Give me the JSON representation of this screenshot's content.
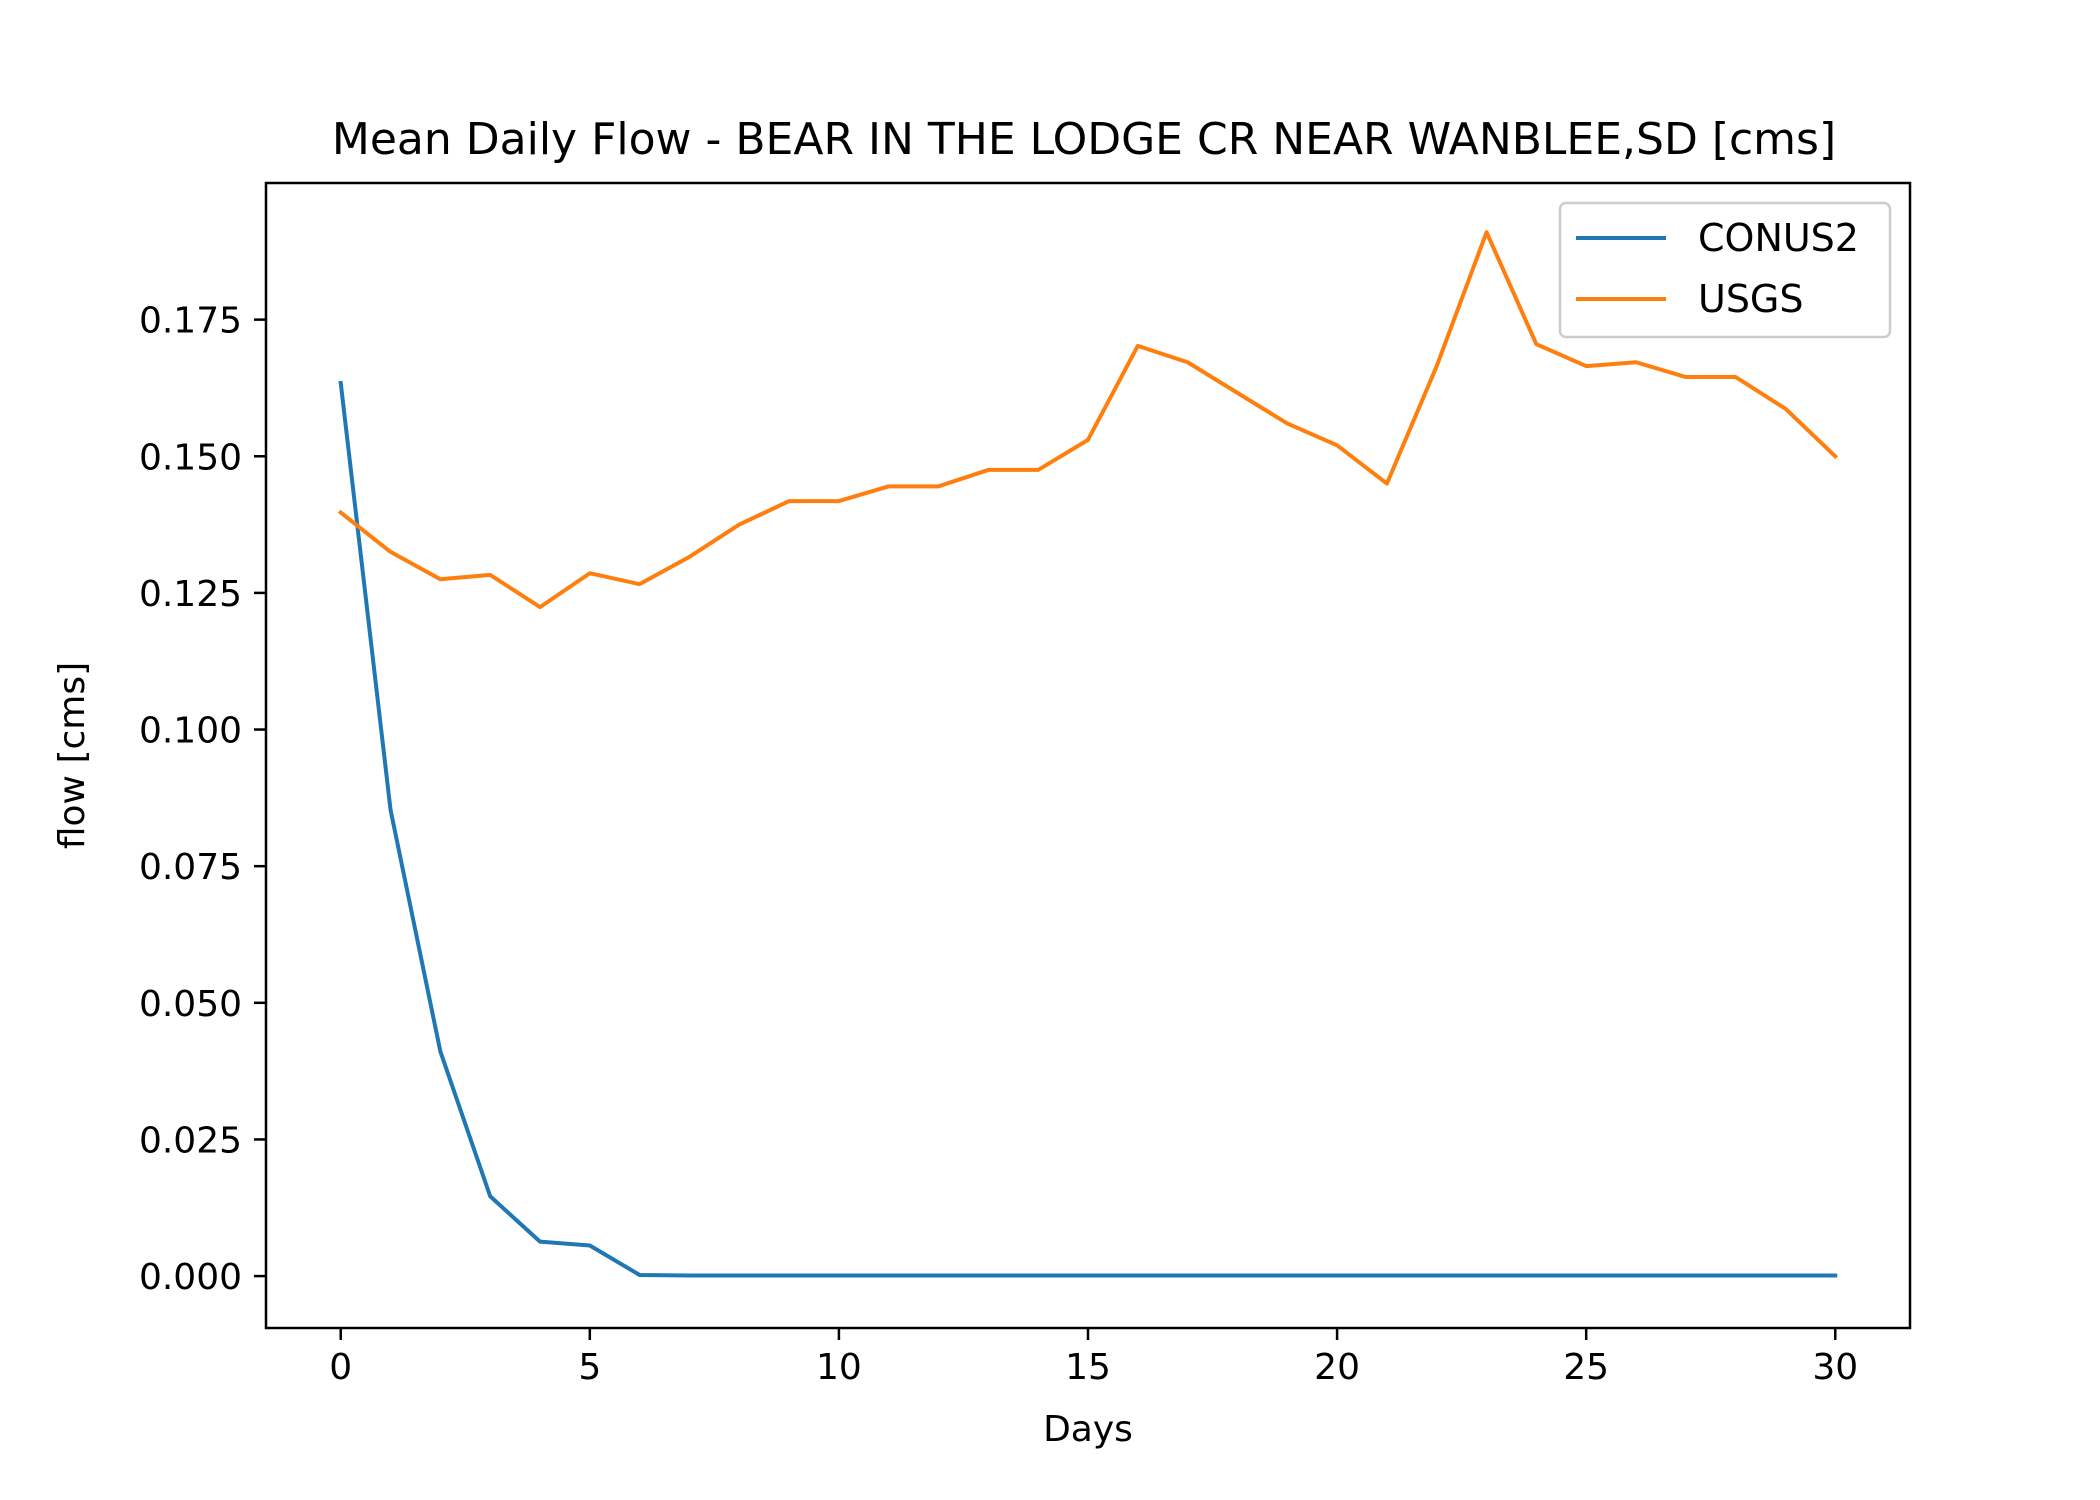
{
  "chart_data": {
    "type": "line",
    "title": "Mean Daily Flow - BEAR IN THE LODGE CR NEAR WANBLEE,SD [cms]",
    "xlabel": "Days",
    "ylabel": "flow [cms]",
    "xlim": [
      -1.5,
      31.5
    ],
    "ylim": [
      -0.0095,
      0.2
    ],
    "xticks": [
      0,
      5,
      10,
      15,
      20,
      25,
      30
    ],
    "xtick_labels": [
      "0",
      "5",
      "10",
      "15",
      "20",
      "25",
      "30"
    ],
    "yticks": [
      0,
      0.025,
      0.05,
      0.075,
      0.1,
      0.125,
      0.15,
      0.175
    ],
    "ytick_labels": [
      "0.000",
      "0.025",
      "0.050",
      "0.075",
      "0.100",
      "0.125",
      "0.150",
      "0.175"
    ],
    "grid": false,
    "legend_position": "top-right",
    "x": [
      0,
      1,
      2,
      3,
      4,
      5,
      6,
      7,
      8,
      9,
      10,
      11,
      12,
      13,
      14,
      15,
      16,
      17,
      18,
      19,
      20,
      21,
      22,
      23,
      24,
      25,
      26,
      27,
      28,
      29,
      30
    ],
    "series": [
      {
        "name": "CONUS2",
        "color": "#1f77b4",
        "values": [
          0.1634,
          0.0853,
          0.0411,
          0.0146,
          0.0063,
          0.0056,
          0.0002,
          0.0001,
          0.0001,
          0.0001,
          0.0001,
          0.0001,
          0.0001,
          0.0001,
          0.0001,
          0.0001,
          0.0001,
          0.0001,
          0.0001,
          0.0001,
          0.0001,
          0.0001,
          0.0001,
          0.0001,
          0.0001,
          0.0001,
          0.0001,
          0.0001,
          0.0001,
          0.0001,
          0.0001
        ]
      },
      {
        "name": "USGS",
        "color": "#ff7f0e",
        "values": [
          0.1397,
          0.1325,
          0.1275,
          0.1283,
          0.1224,
          0.1286,
          0.1266,
          0.1316,
          0.1375,
          0.1418,
          0.1418,
          0.1445,
          0.1445,
          0.1475,
          0.1475,
          0.153,
          0.1702,
          0.1672,
          0.1616,
          0.156,
          0.152,
          0.145,
          0.1665,
          0.191,
          0.1705,
          0.1665,
          0.1672,
          0.1645,
          0.1645,
          0.1587,
          0.15
        ]
      }
    ]
  }
}
